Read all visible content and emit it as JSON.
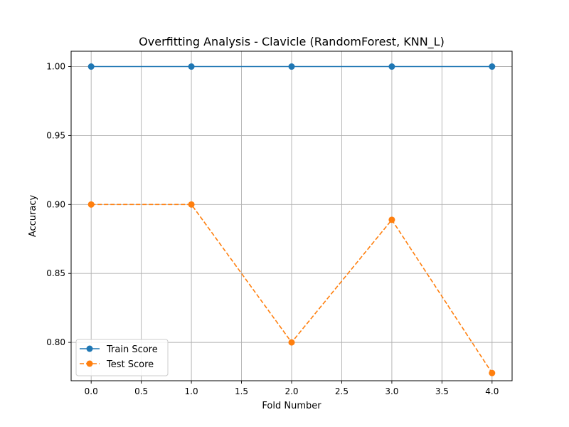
{
  "chart_data": {
    "type": "line",
    "title": "Overfitting Analysis - Clavicle (RandomForest, KNN_L)",
    "xlabel": "Fold Number",
    "ylabel": "Accuracy",
    "xlim": [
      -0.2,
      4.2
    ],
    "ylim": [
      0.7722,
      1.0111
    ],
    "xticks": [
      0.0,
      0.5,
      1.0,
      1.5,
      2.0,
      2.5,
      3.0,
      3.5,
      4.0
    ],
    "xtick_labels": [
      "0.0",
      "0.5",
      "1.0",
      "1.5",
      "2.0",
      "2.5",
      "3.0",
      "3.5",
      "4.0"
    ],
    "yticks": [
      0.8,
      0.85,
      0.9,
      0.95,
      1.0
    ],
    "ytick_labels": [
      "0.80",
      "0.85",
      "0.90",
      "0.95",
      "1.00"
    ],
    "grid": true,
    "legend_position": "lower-left",
    "x": [
      0,
      1,
      2,
      3,
      4
    ],
    "series": [
      {
        "name": "Train Score",
        "values": [
          1.0,
          1.0,
          1.0,
          1.0,
          1.0
        ],
        "color": "#1f77b4",
        "dashed": false
      },
      {
        "name": "Test Score",
        "values": [
          0.9,
          0.9,
          0.8,
          0.8889,
          0.7778
        ],
        "color": "#ff7f0e",
        "dashed": true
      }
    ]
  }
}
